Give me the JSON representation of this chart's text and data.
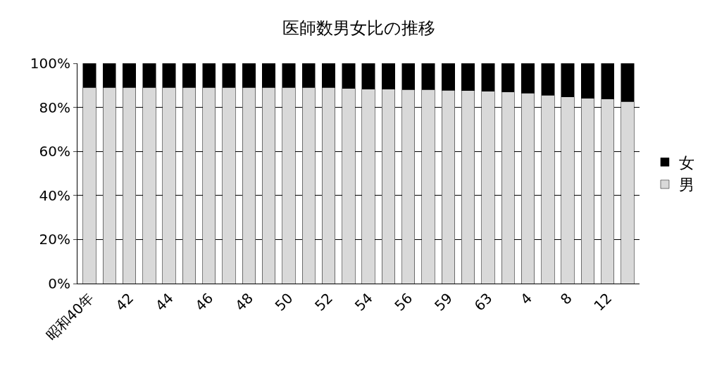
{
  "chart_data": {
    "type": "bar",
    "title": "医師数男女比の推移",
    "stacked": true,
    "categories": [
      "昭和40年",
      null,
      "42",
      null,
      "44",
      null,
      "46",
      null,
      "48",
      null,
      "50",
      null,
      "52",
      null,
      "54",
      null,
      "56",
      null,
      "59",
      null,
      "63",
      null,
      "4",
      null,
      "8",
      null,
      "12",
      null
    ],
    "series": [
      {
        "name": "男",
        "color": "#d9d9d9",
        "values": [
          89.1,
          89.1,
          89.1,
          89.1,
          89.1,
          89.1,
          89.1,
          89.1,
          89.1,
          89.1,
          89.1,
          89.1,
          89.1,
          88.6,
          88.3,
          88.3,
          88.1,
          88.1,
          87.8,
          87.7,
          87.3,
          87.0,
          86.5,
          85.6,
          84.8,
          84.1,
          83.8,
          82.7
        ]
      },
      {
        "name": "女",
        "color": "#000000",
        "values": [
          10.9,
          10.9,
          10.9,
          10.9,
          10.9,
          10.9,
          10.9,
          10.9,
          10.9,
          10.9,
          10.9,
          10.9,
          10.9,
          11.4,
          11.7,
          11.7,
          11.9,
          11.9,
          12.2,
          12.3,
          12.7,
          13.0,
          13.5,
          14.4,
          15.2,
          15.9,
          16.2,
          17.3
        ]
      }
    ],
    "ylim": [
      0,
      100
    ],
    "yticks": [
      {
        "value": 0,
        "label": "0%"
      },
      {
        "value": 20,
        "label": "20%"
      },
      {
        "value": 40,
        "label": "40%"
      },
      {
        "value": 60,
        "label": "60%"
      },
      {
        "value": 80,
        "label": "80%"
      },
      {
        "value": 100,
        "label": "100%"
      }
    ],
    "grid": "y",
    "legend": "right"
  }
}
